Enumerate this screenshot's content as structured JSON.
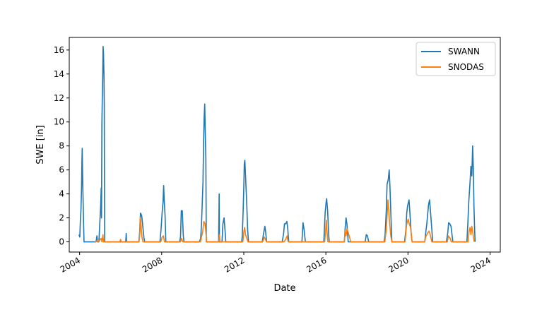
{
  "chart_data": {
    "type": "line",
    "title": "",
    "xlabel": "Date",
    "ylabel": "SWE [in]",
    "xlim": [
      "2003-07-01",
      "2024-07-01"
    ],
    "ylim": [
      -0.85,
      17.05
    ],
    "xticks": [
      {
        "date": "2004-01-01",
        "label": "2004"
      },
      {
        "date": "2008-01-01",
        "label": "2008"
      },
      {
        "date": "2012-01-01",
        "label": "2012"
      },
      {
        "date": "2016-01-01",
        "label": "2016"
      },
      {
        "date": "2020-01-01",
        "label": "2020"
      },
      {
        "date": "2024-01-01",
        "label": "2024"
      }
    ],
    "yticks": [
      0,
      2,
      4,
      6,
      8,
      10,
      12,
      14,
      16
    ],
    "grid": false,
    "legend": "upper right",
    "series": [
      {
        "name": "SWANN",
        "color": "#1f77b4",
        "points": [
          [
            "2003-12-20",
            0.6
          ],
          [
            "2004-01-05",
            0.4
          ],
          [
            "2004-01-15",
            1.8
          ],
          [
            "2004-01-25",
            2.6
          ],
          [
            "2004-02-05",
            4.5
          ],
          [
            "2004-02-12",
            6.8
          ],
          [
            "2004-02-17",
            7.8
          ],
          [
            "2004-02-22",
            6.0
          ],
          [
            "2004-03-01",
            4.0
          ],
          [
            "2004-03-10",
            2.0
          ],
          [
            "2004-03-20",
            0.0
          ],
          [
            "2004-10-20",
            0.0
          ],
          [
            "2004-11-05",
            0.5
          ],
          [
            "2004-11-15",
            0.0
          ],
          [
            "2004-12-10",
            0.0
          ],
          [
            "2004-12-20",
            1.0
          ],
          [
            "2005-01-10",
            3.0
          ],
          [
            "2005-01-20",
            4.5
          ],
          [
            "2005-01-25",
            2.0
          ],
          [
            "2005-02-01",
            9.8
          ],
          [
            "2005-02-08",
            12.0
          ],
          [
            "2005-02-15",
            13.5
          ],
          [
            "2005-02-22",
            16.3
          ],
          [
            "2005-03-01",
            15.8
          ],
          [
            "2005-03-10",
            14.0
          ],
          [
            "2005-03-15",
            11.5
          ],
          [
            "2005-03-22",
            0.0
          ],
          [
            "2006-04-01",
            0.0
          ],
          [
            "2006-04-10",
            0.7
          ],
          [
            "2006-04-15",
            0.0
          ],
          [
            "2006-11-20",
            0.0
          ],
          [
            "2006-12-05",
            0.8
          ],
          [
            "2006-12-20",
            2.4
          ],
          [
            "2007-01-10",
            2.2
          ],
          [
            "2007-02-01",
            1.2
          ],
          [
            "2007-02-20",
            0.3
          ],
          [
            "2007-03-05",
            0.0
          ],
          [
            "2007-12-01",
            0.0
          ],
          [
            "2007-12-20",
            1.0
          ],
          [
            "2008-01-10",
            2.5
          ],
          [
            "2008-01-25",
            3.3
          ],
          [
            "2008-02-05",
            4.7
          ],
          [
            "2008-02-15",
            3.5
          ],
          [
            "2008-03-01",
            2.2
          ],
          [
            "2008-03-15",
            0.0
          ],
          [
            "2008-11-15",
            0.0
          ],
          [
            "2008-12-01",
            0.4
          ],
          [
            "2008-12-15",
            2.6
          ],
          [
            "2009-01-01",
            2.6
          ],
          [
            "2009-01-20",
            0.5
          ],
          [
            "2009-02-01",
            0.0
          ],
          [
            "2009-11-01",
            0.0
          ],
          [
            "2009-11-25",
            0.3
          ],
          [
            "2009-12-10",
            1.5
          ],
          [
            "2009-12-25",
            3.5
          ],
          [
            "2010-01-05",
            5.0
          ],
          [
            "2010-01-15",
            8.0
          ],
          [
            "2010-01-25",
            10.3
          ],
          [
            "2010-02-05",
            11.5
          ],
          [
            "2010-02-15",
            9.0
          ],
          [
            "2010-02-25",
            7.0
          ],
          [
            "2010-03-05",
            0.0
          ],
          [
            "2010-10-10",
            0.0
          ],
          [
            "2010-10-20",
            4.0
          ],
          [
            "2010-10-25",
            0.0
          ],
          [
            "2010-12-10",
            0.0
          ],
          [
            "2010-12-25",
            1.5
          ],
          [
            "2011-01-15",
            2.0
          ],
          [
            "2011-02-01",
            1.0
          ],
          [
            "2011-02-15",
            0.0
          ],
          [
            "2011-11-25",
            0.0
          ],
          [
            "2011-12-05",
            0.5
          ],
          [
            "2011-12-20",
            2.5
          ],
          [
            "2012-01-01",
            4.5
          ],
          [
            "2012-01-10",
            6.5
          ],
          [
            "2012-01-20",
            6.8
          ],
          [
            "2012-02-01",
            5.5
          ],
          [
            "2012-02-20",
            3.5
          ],
          [
            "2012-03-10",
            1.0
          ],
          [
            "2012-03-25",
            0.0
          ],
          [
            "2012-11-25",
            0.0
          ],
          [
            "2012-12-15",
            0.6
          ],
          [
            "2013-01-10",
            1.3
          ],
          [
            "2013-01-25",
            0.8
          ],
          [
            "2013-02-10",
            0.0
          ],
          [
            "2013-11-15",
            0.0
          ],
          [
            "2013-12-10",
            0.7
          ],
          [
            "2013-12-25",
            1.5
          ],
          [
            "2014-01-15",
            1.5
          ],
          [
            "2014-02-05",
            1.7
          ],
          [
            "2014-02-20",
            1.2
          ],
          [
            "2014-03-10",
            0.0
          ],
          [
            "2014-11-01",
            0.0
          ],
          [
            "2014-11-20",
            1.6
          ],
          [
            "2014-12-10",
            1.0
          ],
          [
            "2015-01-01",
            0.0
          ],
          [
            "2015-11-25",
            0.0
          ],
          [
            "2015-12-05",
            1.0
          ],
          [
            "2015-12-20",
            2.5
          ],
          [
            "2016-01-05",
            3.3
          ],
          [
            "2016-01-15",
            3.6
          ],
          [
            "2016-02-01",
            2.6
          ],
          [
            "2016-02-20",
            0.6
          ],
          [
            "2016-03-01",
            0.0
          ],
          [
            "2016-11-25",
            0.0
          ],
          [
            "2016-12-10",
            1.2
          ],
          [
            "2016-12-25",
            2.0
          ],
          [
            "2017-01-10",
            1.5
          ],
          [
            "2017-02-01",
            0.0
          ],
          [
            "2017-12-01",
            0.0
          ],
          [
            "2017-12-20",
            0.6
          ],
          [
            "2018-01-10",
            0.5
          ],
          [
            "2018-02-01",
            0.0
          ],
          [
            "2018-11-01",
            0.0
          ],
          [
            "2018-11-20",
            0.6
          ],
          [
            "2018-12-10",
            2.5
          ],
          [
            "2018-12-25",
            4.8
          ],
          [
            "2019-01-15",
            5.2
          ],
          [
            "2019-02-01",
            6.0
          ],
          [
            "2019-02-15",
            4.5
          ],
          [
            "2019-03-05",
            2.0
          ],
          [
            "2019-03-20",
            0.0
          ],
          [
            "2019-11-01",
            0.0
          ],
          [
            "2019-11-25",
            1.0
          ],
          [
            "2019-12-10",
            2.4
          ],
          [
            "2019-12-25",
            3.0
          ],
          [
            "2020-01-20",
            3.5
          ],
          [
            "2020-02-10",
            2.0
          ],
          [
            "2020-03-01",
            0.5
          ],
          [
            "2020-03-15",
            0.0
          ],
          [
            "2020-10-25",
            0.0
          ],
          [
            "2020-11-10",
            0.7
          ],
          [
            "2020-12-01",
            1.5
          ],
          [
            "2021-01-01",
            3.1
          ],
          [
            "2021-01-20",
            3.5
          ],
          [
            "2021-02-05",
            2.5
          ],
          [
            "2021-03-01",
            1.0
          ],
          [
            "2021-03-15",
            0.0
          ],
          [
            "2021-11-15",
            0.0
          ],
          [
            "2021-12-10",
            0.8
          ],
          [
            "2021-12-25",
            1.6
          ],
          [
            "2022-01-15",
            1.5
          ],
          [
            "2022-02-05",
            1.3
          ],
          [
            "2022-02-25",
            0.5
          ],
          [
            "2022-03-10",
            0.0
          ],
          [
            "2022-11-15",
            0.0
          ],
          [
            "2022-12-01",
            1.5
          ],
          [
            "2022-12-20",
            3.5
          ],
          [
            "2023-01-10",
            5.0
          ],
          [
            "2023-01-25",
            6.3
          ],
          [
            "2023-02-10",
            5.5
          ],
          [
            "2023-02-25",
            8.0
          ],
          [
            "2023-03-10",
            6.0
          ],
          [
            "2023-03-20",
            3.0
          ],
          [
            "2023-04-01",
            1.0
          ],
          [
            "2023-04-10",
            0.0
          ]
        ]
      },
      {
        "name": "SNODAS",
        "color": "#ff7f0e",
        "points": [
          [
            "2004-10-01",
            0.0
          ],
          [
            "2004-11-10",
            0.1
          ],
          [
            "2004-12-01",
            0.0
          ],
          [
            "2005-01-20",
            0.3
          ],
          [
            "2005-02-01",
            0.0
          ],
          [
            "2005-02-20",
            0.6
          ],
          [
            "2005-03-01",
            0.0
          ],
          [
            "2005-12-15",
            0.0
          ],
          [
            "2006-01-01",
            0.2
          ],
          [
            "2006-01-10",
            0.0
          ],
          [
            "2006-11-25",
            0.0
          ],
          [
            "2006-12-10",
            0.8
          ],
          [
            "2006-12-20",
            2.0
          ],
          [
            "2007-01-05",
            1.0
          ],
          [
            "2007-01-15",
            0.4
          ],
          [
            "2007-02-01",
            0.0
          ],
          [
            "2007-12-15",
            0.0
          ],
          [
            "2008-01-10",
            0.4
          ],
          [
            "2008-02-01",
            0.5
          ],
          [
            "2008-02-20",
            0.0
          ],
          [
            "2008-12-01",
            0.0
          ],
          [
            "2008-12-20",
            0.3
          ],
          [
            "2009-01-10",
            0.0
          ],
          [
            "2009-11-20",
            0.0
          ],
          [
            "2009-12-10",
            0.4
          ],
          [
            "2010-01-01",
            0.9
          ],
          [
            "2010-01-20",
            1.7
          ],
          [
            "2010-02-10",
            1.5
          ],
          [
            "2010-02-25",
            0.8
          ],
          [
            "2010-03-10",
            0.0
          ],
          [
            "2010-10-15",
            0.0
          ],
          [
            "2010-10-25",
            0.6
          ],
          [
            "2010-11-05",
            0.0
          ],
          [
            "2011-12-15",
            0.0
          ],
          [
            "2012-01-01",
            0.8
          ],
          [
            "2012-01-15",
            1.2
          ],
          [
            "2012-02-01",
            0.6
          ],
          [
            "2012-03-01",
            0.2
          ],
          [
            "2012-03-15",
            0.0
          ],
          [
            "2012-12-01",
            0.0
          ],
          [
            "2013-01-01",
            0.4
          ],
          [
            "2013-01-20",
            0.2
          ],
          [
            "2013-02-10",
            0.0
          ],
          [
            "2013-12-15",
            0.0
          ],
          [
            "2014-01-15",
            0.2
          ],
          [
            "2014-02-10",
            0.5
          ],
          [
            "2014-03-01",
            0.0
          ],
          [
            "2015-12-10",
            0.0
          ],
          [
            "2015-12-25",
            0.8
          ],
          [
            "2016-01-10",
            1.8
          ],
          [
            "2016-01-20",
            1.0
          ],
          [
            "2016-02-05",
            0.0
          ],
          [
            "2016-11-25",
            0.0
          ],
          [
            "2016-12-10",
            0.9
          ],
          [
            "2016-12-25",
            0.5
          ],
          [
            "2017-01-10",
            1.1
          ],
          [
            "2017-02-01",
            0.8
          ],
          [
            "2017-03-01",
            0.3
          ],
          [
            "2017-03-20",
            0.0
          ],
          [
            "2018-11-15",
            0.0
          ],
          [
            "2018-12-10",
            1.0
          ],
          [
            "2018-12-25",
            2.2
          ],
          [
            "2019-01-10",
            3.5
          ],
          [
            "2019-01-25",
            2.6
          ],
          [
            "2019-02-10",
            1.5
          ],
          [
            "2019-03-01",
            0.5
          ],
          [
            "2019-03-20",
            0.0
          ],
          [
            "2019-11-10",
            0.0
          ],
          [
            "2019-11-25",
            0.8
          ],
          [
            "2019-12-10",
            1.5
          ],
          [
            "2020-01-05",
            1.9
          ],
          [
            "2020-01-25",
            1.5
          ],
          [
            "2020-02-15",
            1.2
          ],
          [
            "2020-03-01",
            0.6
          ],
          [
            "2020-03-15",
            0.0
          ],
          [
            "2020-10-25",
            0.0
          ],
          [
            "2020-11-10",
            0.4
          ],
          [
            "2020-12-10",
            0.7
          ],
          [
            "2021-01-10",
            0.9
          ],
          [
            "2021-02-05",
            0.5
          ],
          [
            "2021-03-01",
            0.0
          ],
          [
            "2021-12-01",
            0.0
          ],
          [
            "2021-12-20",
            0.5
          ],
          [
            "2022-01-20",
            0.3
          ],
          [
            "2022-02-10",
            0.0
          ],
          [
            "2022-12-05",
            0.0
          ],
          [
            "2022-12-25",
            0.9
          ],
          [
            "2023-01-10",
            1.2
          ],
          [
            "2023-01-25",
            0.6
          ],
          [
            "2023-02-10",
            1.3
          ],
          [
            "2023-02-25",
            0.9
          ],
          [
            "2023-03-10",
            0.4
          ],
          [
            "2023-03-25",
            0.0
          ]
        ]
      }
    ]
  }
}
